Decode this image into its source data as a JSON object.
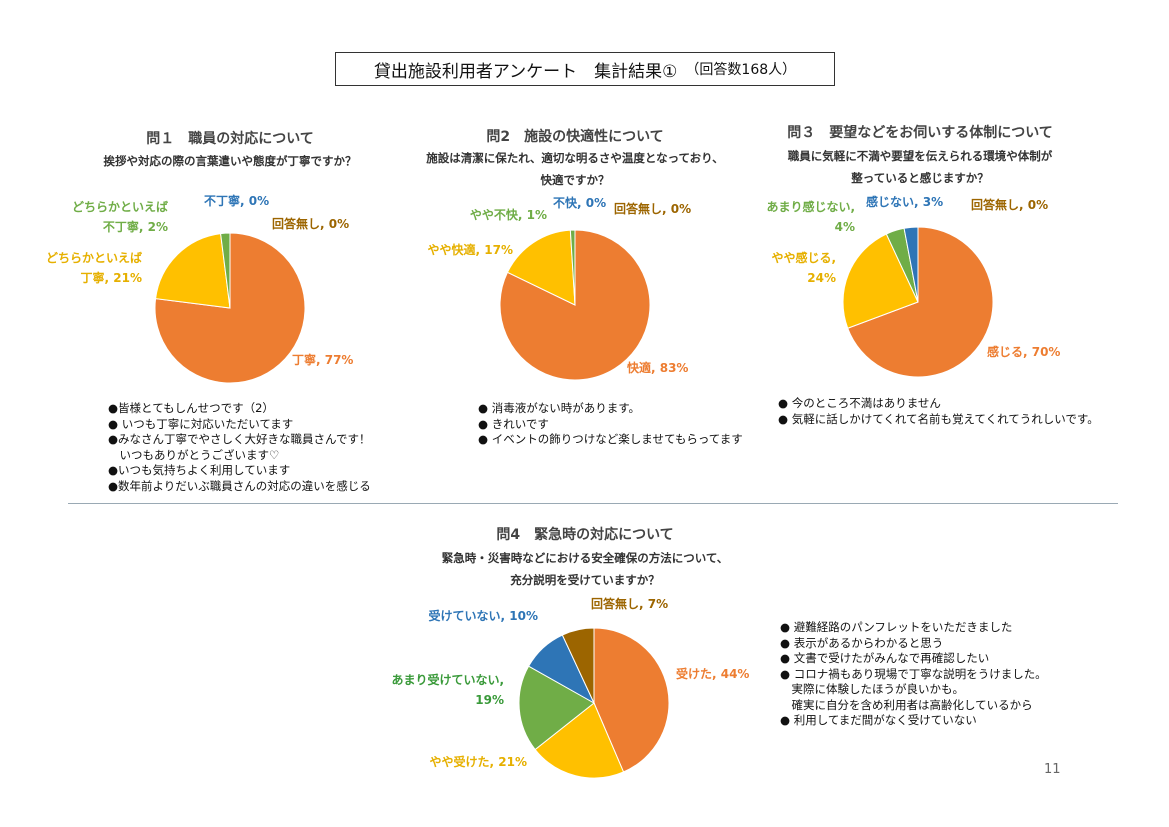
{
  "title": {
    "main": "貸出施設利用者アンケート　集計結果①",
    "sub": "（回答数168人）"
  },
  "page_number": "11",
  "questions": [
    {
      "title": "問１　職員の対応について",
      "subtitle_lines": [
        "挨拶や対応の際の言葉遣いや態度が丁寧ですか？"
      ],
      "comments": [
        "●皆様とてもしんせつです（2）",
        "● いつも丁寧に対応いただいてます",
        "●みなさん丁寧でやさしく大好きな職員さんです！",
        "　いつもありがとうございます♡",
        "●いつも気持ちよく利用しています",
        "●数年前よりだいぶ職員さんの対応の違いを感じる"
      ]
    },
    {
      "title": "問2　施設の快適性について",
      "subtitle_lines": [
        "施設は清潔に保たれ、適切な明るさや温度となっており、",
        "快適ですか？"
      ],
      "comments": [
        "● 消毒液がない時があります。",
        "● きれいです",
        "● イベントの飾りつけなど楽しませてもらってます"
      ]
    },
    {
      "title": "問３　要望などをお伺いする体制について",
      "subtitle_lines": [
        "職員に気軽に不満や要望を伝えられる環境や体制が",
        "整っていると感じますか？"
      ],
      "comments": [
        "● 今のところ不満はありません",
        "● 気軽に話しかけてくれて名前も覚えてくれてうれしいです。"
      ]
    },
    {
      "title": "問4　緊急時の対応について",
      "subtitle_lines": [
        "緊急時・災害時などにおける安全確保の方法について、",
        "充分説明を受けていますか？"
      ],
      "comments": [
        "● 避難経路のパンフレットをいただきました",
        "● 表示があるからわかると思う",
        "● 文書で受けたがみんなで再確認したい",
        "● コロナ禍もあり現場で丁寧な説明をうけました。",
        "　実際に体験したほうが良いかも。",
        "　確実に自分を含め利用者は高齢化しているから",
        "● 利用してまだ間がなく受けていない"
      ]
    }
  ],
  "chart_data": [
    {
      "type": "pie",
      "title": "問１　職員の対応について",
      "slices": [
        {
          "label": "丁寧",
          "value": 77,
          "color": "#ED7D31",
          "display_lines": [
            "丁寧, 77%"
          ]
        },
        {
          "label": "どちらかといえば丁寧",
          "value": 21,
          "color": "#FFC000",
          "display_lines": [
            "どちらかといえば",
            "丁寧, 21%"
          ]
        },
        {
          "label": "どちらかといえば不丁寧",
          "value": 2,
          "color": "#70AD47",
          "display_lines": [
            "どちらかといえば",
            "不丁寧, 2%"
          ]
        },
        {
          "label": "不丁寧",
          "value": 0,
          "color": "#2E75B6",
          "display_lines": [
            "不丁寧, 0%"
          ]
        },
        {
          "label": "回答無し",
          "value": 0,
          "color": "#9C6500",
          "display_lines": [
            "回答無し, 0%"
          ]
        }
      ]
    },
    {
      "type": "pie",
      "title": "問2　施設の快適性について",
      "slices": [
        {
          "label": "快適",
          "value": 83,
          "color": "#ED7D31",
          "display_lines": [
            "快適, 83%"
          ]
        },
        {
          "label": "やや快適",
          "value": 17,
          "color": "#FFC000",
          "display_lines": [
            "やや快適, 17%"
          ]
        },
        {
          "label": "やや不快",
          "value": 1,
          "color": "#70AD47",
          "display_lines": [
            "やや不快, 1%"
          ]
        },
        {
          "label": "不快",
          "value": 0,
          "color": "#2E75B6",
          "display_lines": [
            "不快, 0%"
          ]
        },
        {
          "label": "回答無し",
          "value": 0,
          "color": "#9C6500",
          "display_lines": [
            "回答無し, 0%"
          ]
        }
      ]
    },
    {
      "type": "pie",
      "title": "問３　要望などをお伺いする体制について",
      "slices": [
        {
          "label": "感じる",
          "value": 70,
          "color": "#ED7D31",
          "display_lines": [
            "感じる, 70%"
          ]
        },
        {
          "label": "やや感じる",
          "value": 24,
          "color": "#FFC000",
          "display_lines": [
            "やや感じる,",
            "24%"
          ]
        },
        {
          "label": "あまり感じない",
          "value": 4,
          "color": "#70AD47",
          "display_lines": [
            "あまり感じない,",
            "4%"
          ]
        },
        {
          "label": "感じない",
          "value": 3,
          "color": "#2E75B6",
          "display_lines": [
            "感じない, 3%"
          ]
        },
        {
          "label": "回答無し",
          "value": 0,
          "color": "#9C6500",
          "display_lines": [
            "回答無し, 0%"
          ]
        }
      ]
    },
    {
      "type": "pie",
      "title": "問4　緊急時の対応について",
      "slices": [
        {
          "label": "受けた",
          "value": 44,
          "color": "#ED7D31",
          "display_lines": [
            "受けた, 44%"
          ]
        },
        {
          "label": "やや受けた",
          "value": 21,
          "color": "#FFC000",
          "display_lines": [
            "やや受けた, 21%"
          ]
        },
        {
          "label": "あまり受けていない",
          "value": 19,
          "color": "#70AD47",
          "display_lines": [
            "あまり受けていない,",
            "19%"
          ]
        },
        {
          "label": "受けていない",
          "value": 10,
          "color": "#2E75B6",
          "display_lines": [
            "受けていない, 10%"
          ]
        },
        {
          "label": "回答無し",
          "value": 7,
          "color": "#9C6500",
          "display_lines": [
            "回答無し, 7%"
          ]
        }
      ]
    }
  ]
}
